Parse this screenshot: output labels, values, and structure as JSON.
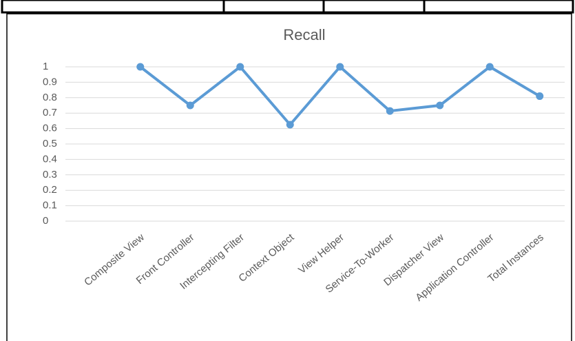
{
  "chart_data": {
    "type": "line",
    "title": "Recall",
    "categories": [
      null,
      "Composite View",
      "Front Controller",
      "Intercepting Filter",
      "Context Object",
      "View Helper",
      "Service-To-Worker",
      "Dispatcher View",
      "Application Controller",
      "Total Instances"
    ],
    "values": [
      null,
      1,
      0.75,
      1,
      0.625,
      1,
      0.714,
      0.75,
      1,
      0.81
    ],
    "color": "#5b9bd5",
    "ylim": [
      0,
      1
    ],
    "yticks": [
      0,
      0.1,
      0.2,
      0.3,
      0.4,
      0.5,
      0.6,
      0.7,
      0.8,
      0.9,
      1
    ],
    "grid": true
  }
}
